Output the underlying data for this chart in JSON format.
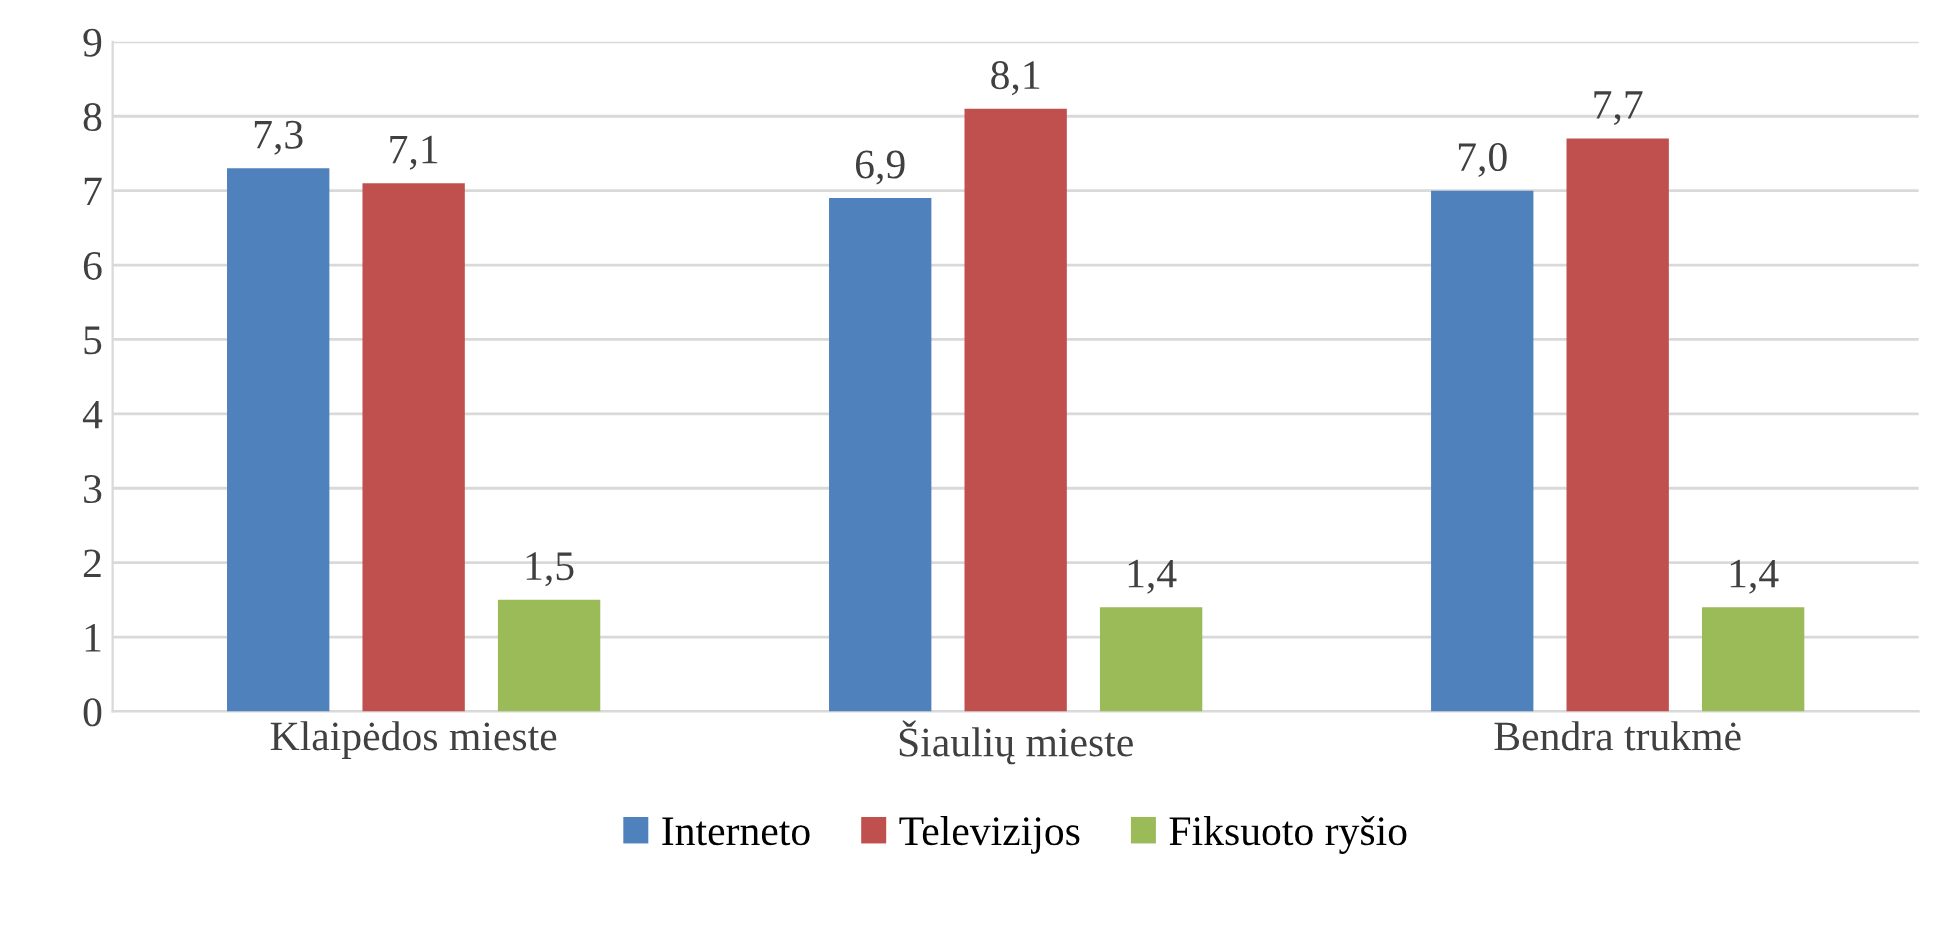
{
  "chart_data": {
    "type": "bar",
    "categories": [
      "Klaipėdos mieste",
      "Šiaulių mieste",
      "Bendra trukmė"
    ],
    "series": [
      {
        "name": "Interneto",
        "color": "#4f81bd",
        "values": [
          7.3,
          6.9,
          7.0
        ],
        "value_labels": [
          "7,3",
          "6,9",
          "7,0"
        ]
      },
      {
        "name": "Televizijos",
        "color": "#c0504d",
        "values": [
          7.1,
          8.1,
          7.7
        ],
        "value_labels": [
          "7,1",
          "8,1",
          "7,7"
        ]
      },
      {
        "name": "Fiksuoto ryšio",
        "color": "#9bbb59",
        "values": [
          1.5,
          1.4,
          1.4
        ],
        "value_labels": [
          "1,5",
          "1,4",
          "1,4"
        ]
      }
    ],
    "ylim": [
      0,
      9
    ],
    "yticks": [
      0,
      1,
      2,
      3,
      4,
      5,
      6,
      7,
      8,
      9
    ],
    "grid": "y",
    "legend": "bottom"
  }
}
